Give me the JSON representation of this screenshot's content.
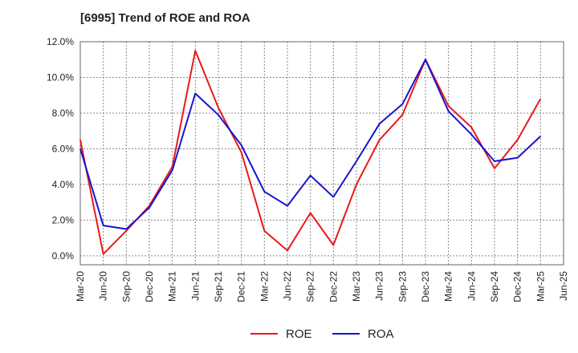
{
  "title": "[6995]  Trend of ROE and ROA",
  "chart_data": {
    "type": "line",
    "title": "[6995]  Trend of ROE and ROA",
    "xlabel": "",
    "ylabel": "",
    "categories": [
      "Mar-20",
      "Jun-20",
      "Sep-20",
      "Dec-20",
      "Mar-21",
      "Jun-21",
      "Sep-21",
      "Dec-21",
      "Mar-22",
      "Jun-22",
      "Sep-22",
      "Dec-22",
      "Mar-23",
      "Jun-23",
      "Sep-23",
      "Dec-23",
      "Mar-24",
      "Jun-24",
      "Sep-24",
      "Dec-24",
      "Mar-25",
      "Jun-25"
    ],
    "y_ticks": [
      "0.0%",
      "2.0%",
      "4.0%",
      "6.0%",
      "8.0%",
      "10.0%",
      "12.0%"
    ],
    "ylim": [
      -0.5,
      12.0
    ],
    "grid": true,
    "legend_position": "bottom",
    "series": [
      {
        "name": "ROE",
        "color": "#e8191b",
        "values": [
          6.5,
          0.1,
          1.4,
          2.8,
          5.0,
          11.5,
          8.3,
          5.8,
          1.4,
          0.3,
          2.4,
          0.6,
          4.0,
          6.5,
          7.9,
          11.0,
          8.4,
          7.2,
          4.9,
          6.5,
          8.8,
          null
        ]
      },
      {
        "name": "ROA",
        "color": "#1515d0",
        "values": [
          6.0,
          1.7,
          1.5,
          2.7,
          4.8,
          9.1,
          7.9,
          6.2,
          3.6,
          2.8,
          4.5,
          3.3,
          5.3,
          7.4,
          8.5,
          11.0,
          8.1,
          6.8,
          5.3,
          5.5,
          6.7,
          null
        ]
      }
    ]
  }
}
